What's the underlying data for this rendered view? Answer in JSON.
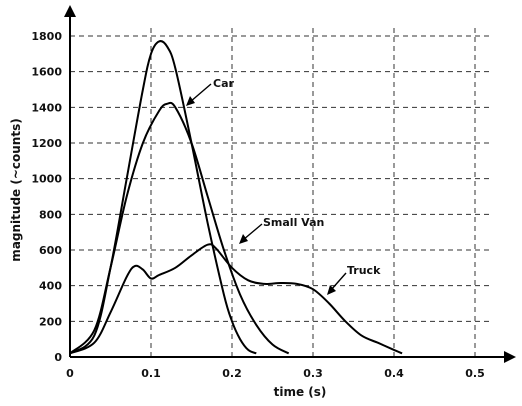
{
  "chart_data": {
    "type": "line",
    "title": "",
    "xlabel": "time (s)",
    "ylabel": "magnitude (~counts)",
    "xlim": [
      0,
      0.5
    ],
    "ylim": [
      0,
      1800
    ],
    "xticks": [
      0,
      0.1,
      0.2,
      0.3,
      0.4,
      0.5
    ],
    "xtick_labels": [
      "0",
      "0.1",
      "0.2",
      "0.3",
      "0.4",
      "0.5"
    ],
    "yticks": [
      0,
      200,
      400,
      600,
      800,
      1000,
      1200,
      1400,
      1600,
      1800
    ],
    "ytick_labels": [
      "0",
      "200",
      "400",
      "600",
      "800",
      "1000",
      "1200",
      "1400",
      "1600",
      "1800"
    ],
    "grid": true,
    "legend": "none",
    "series": [
      {
        "name": "Car",
        "x": [
          0,
          0.03,
          0.05,
          0.07,
          0.09,
          0.1,
          0.11,
          0.12,
          0.13,
          0.15,
          0.17,
          0.19,
          0.2,
          0.21,
          0.22,
          0.23
        ],
        "y": [
          20,
          120,
          500,
          1000,
          1500,
          1700,
          1770,
          1740,
          1620,
          1200,
          750,
          350,
          200,
          100,
          40,
          20
        ]
      },
      {
        "name": "Small Van",
        "x": [
          0,
          0.03,
          0.05,
          0.07,
          0.09,
          0.11,
          0.12,
          0.13,
          0.15,
          0.17,
          0.19,
          0.21,
          0.23,
          0.25,
          0.27
        ],
        "y": [
          20,
          150,
          500,
          900,
          1200,
          1380,
          1420,
          1400,
          1200,
          900,
          600,
          350,
          180,
          70,
          20
        ]
      },
      {
        "name": "Truck",
        "x": [
          0,
          0.03,
          0.05,
          0.07,
          0.08,
          0.09,
          0.1,
          0.11,
          0.13,
          0.15,
          0.17,
          0.18,
          0.2,
          0.22,
          0.24,
          0.26,
          0.28,
          0.3,
          0.32,
          0.34,
          0.36,
          0.38,
          0.4,
          0.41
        ],
        "y": [
          20,
          80,
          250,
          450,
          510,
          490,
          440,
          460,
          500,
          570,
          630,
          610,
          500,
          430,
          410,
          415,
          410,
          380,
          300,
          200,
          120,
          80,
          40,
          20
        ]
      }
    ],
    "annotations": [
      "Car",
      "Small Van",
      "Truck"
    ]
  }
}
